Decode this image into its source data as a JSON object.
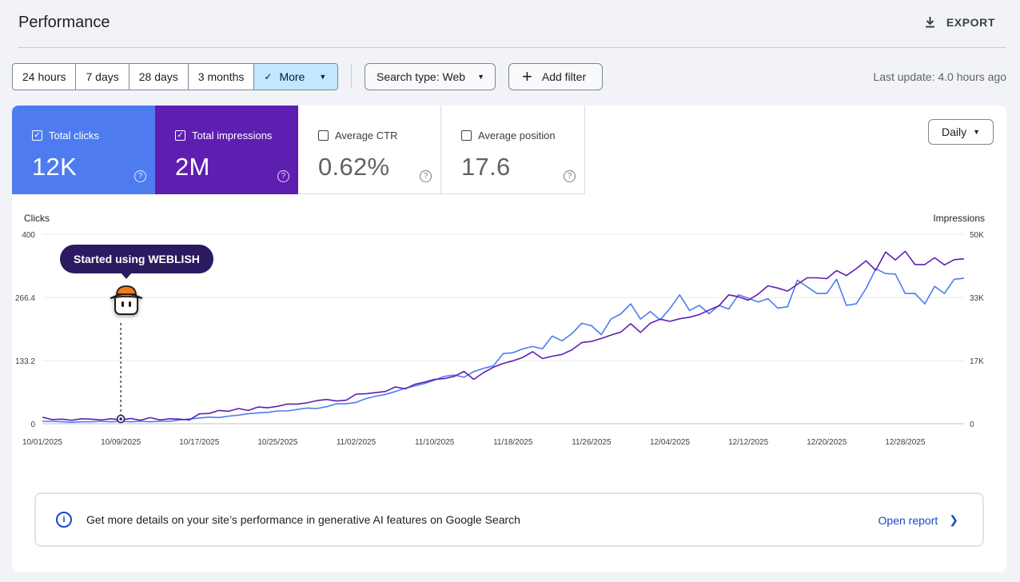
{
  "header": {
    "title": "Performance",
    "export_label": "EXPORT"
  },
  "toolbar": {
    "ranges": [
      "24 hours",
      "7 days",
      "28 days",
      "3 months"
    ],
    "more_label": "More",
    "search_type": "Search type: Web",
    "add_filter": "Add filter",
    "last_update": "Last update: 4.0 hours ago"
  },
  "metrics": {
    "clicks": {
      "label": "Total clicks",
      "value": "12K",
      "checked": true,
      "color": "#4e7cf0"
    },
    "impressions": {
      "label": "Total impressions",
      "value": "2M",
      "checked": true,
      "color": "#5e1eb0"
    },
    "ctr": {
      "label": "Average CTR",
      "value": "0.62%",
      "checked": false
    },
    "position": {
      "label": "Average position",
      "value": "17.6",
      "checked": false
    }
  },
  "granularity": "Daily",
  "annotation": {
    "label": "Started using WEBLISH",
    "date": "10/09/2025"
  },
  "banner": {
    "message": "Get more details on your site’s performance in generative AI features on Google Search",
    "link": "Open report"
  },
  "chart_data": {
    "type": "line",
    "xlabel": "",
    "ylabel_left": "Clicks",
    "ylabel_right": "Impressions",
    "ylim_left": [
      0,
      400
    ],
    "ylim_right": [
      0,
      50000
    ],
    "yticks_left": [
      "0",
      "133.2",
      "266.4",
      "400"
    ],
    "yticks_right": [
      "0",
      "17K",
      "33K",
      "50K"
    ],
    "xticks": [
      "10/01/2025",
      "10/09/2025",
      "10/17/2025",
      "10/25/2025",
      "11/02/2025",
      "11/10/2025",
      "11/18/2025",
      "11/26/2025",
      "12/04/2025",
      "12/12/2025",
      "12/20/2025",
      "12/28/2025"
    ],
    "grid": true,
    "series": [
      {
        "name": "Clicks",
        "axis": "left",
        "color": "#4e7cf0",
        "values": [
          5,
          5,
          4,
          3,
          4,
          4,
          5,
          4,
          5,
          4,
          5,
          4,
          5,
          5,
          8,
          10,
          12,
          14,
          13,
          16,
          18,
          21,
          23,
          24,
          27,
          27,
          30,
          33,
          32,
          36,
          42,
          42,
          45,
          53,
          58,
          62,
          68,
          75,
          80,
          85,
          92,
          100,
          103,
          98,
          110,
          117,
          122,
          148,
          150,
          158,
          163,
          158,
          185,
          175,
          190,
          212,
          207,
          188,
          221,
          232,
          253,
          221,
          237,
          219,
          243,
          272,
          239,
          250,
          232,
          250,
          242,
          272,
          265,
          257,
          264,
          244,
          247,
          303,
          289,
          275,
          275,
          305,
          250,
          253,
          285,
          327,
          317,
          316,
          275,
          275,
          253,
          290,
          275,
          305,
          307
        ]
      },
      {
        "name": "Impressions",
        "axis": "right",
        "color": "#5e1eb0",
        "values": [
          1700,
          1100,
          1200,
          900,
          1300,
          1200,
          1000,
          1300,
          1000,
          1400,
          900,
          1600,
          1000,
          1300,
          1200,
          1000,
          2600,
          2700,
          3500,
          3300,
          4000,
          3500,
          4400,
          4200,
          4600,
          5200,
          5200,
          5500,
          6100,
          6400,
          6000,
          6200,
          7800,
          7900,
          8200,
          8500,
          9700,
          9200,
          10400,
          11000,
          11700,
          11900,
          12500,
          13800,
          11700,
          13500,
          14900,
          15900,
          16600,
          17500,
          19000,
          17200,
          17800,
          18300,
          19500,
          21400,
          21700,
          22500,
          23400,
          24200,
          26400,
          24100,
          26500,
          27600,
          27000,
          27700,
          28100,
          28800,
          30000,
          31100,
          34000,
          33500,
          32600,
          34200,
          36400,
          35800,
          35000,
          36800,
          38500,
          38500,
          38300,
          40400,
          39100,
          40900,
          43000,
          40500,
          45300,
          43200,
          45500,
          42000,
          42000,
          43800,
          41900,
          43300,
          43500
        ]
      }
    ]
  }
}
